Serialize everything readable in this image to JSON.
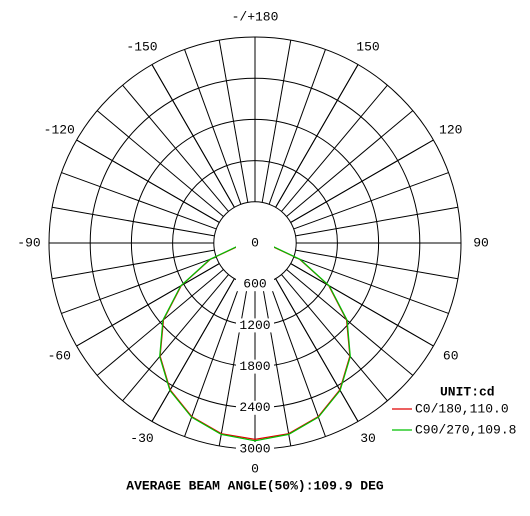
{
  "chart_data": {
    "type": "polar",
    "x": [
      -90,
      -80,
      -70,
      -60,
      -50,
      -40,
      -30,
      -20,
      -10,
      0,
      10,
      20,
      30,
      40,
      50,
      60,
      70,
      80,
      90
    ],
    "series": [
      {
        "name": "C0/180,110.0",
        "color": "#e00000",
        "values": [
          0,
          240,
          690,
          1240,
          1740,
          2150,
          2470,
          2690,
          2820,
          2860,
          2820,
          2690,
          2470,
          2150,
          1740,
          1240,
          690,
          240,
          0
        ]
      },
      {
        "name": "C90/270,109.8",
        "color": "#00c000",
        "values": [
          0,
          250,
          700,
          1250,
          1750,
          2160,
          2480,
          2700,
          2830,
          2880,
          2830,
          2700,
          2480,
          2160,
          1750,
          1250,
          700,
          250,
          0
        ]
      }
    ],
    "xticks": [
      {
        "value": 180,
        "label": "-/+180"
      },
      -150,
      -120,
      -90,
      -60,
      -30,
      0,
      30,
      60,
      90,
      120,
      150
    ],
    "rlim": [
      0,
      3000
    ],
    "rticks": [
      0,
      600,
      1200,
      1800,
      2400,
      3000
    ],
    "unit_label": "UNIT:cd",
    "footer": "AVERAGE BEAM ANGLE(50%):109.9 DEG"
  }
}
